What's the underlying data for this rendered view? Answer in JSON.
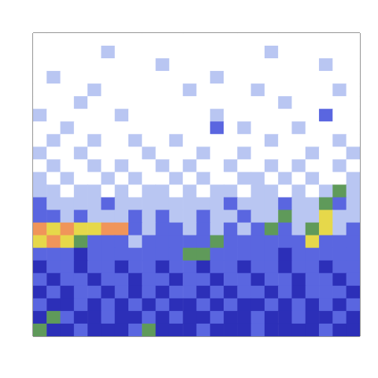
{
  "chart_data": {
    "type": "heatmap",
    "tick_labels": false,
    "cells": [
      [
        0,
        0,
        0,
        0,
        0,
        0,
        0,
        0,
        0,
        0,
        0,
        0,
        0,
        0,
        0,
        0,
        0,
        0,
        0,
        0,
        0,
        0,
        0,
        0
      ],
      [
        0,
        0,
        0,
        0,
        0,
        1,
        0,
        0,
        0,
        0,
        0,
        0,
        0,
        0,
        0,
        0,
        0,
        1,
        0,
        0,
        0,
        0,
        0,
        0
      ],
      [
        0,
        0,
        0,
        0,
        0,
        0,
        0,
        0,
        0,
        1,
        0,
        0,
        0,
        0,
        0,
        0,
        0,
        0,
        0,
        0,
        0,
        1,
        0,
        0
      ],
      [
        0,
        1,
        0,
        0,
        0,
        0,
        0,
        0,
        0,
        0,
        0,
        0,
        0,
        1,
        0,
        0,
        0,
        0,
        0,
        0,
        0,
        0,
        0,
        0
      ],
      [
        0,
        0,
        0,
        0,
        1,
        0,
        0,
        0,
        0,
        0,
        0,
        1,
        0,
        0,
        0,
        0,
        1,
        0,
        0,
        0,
        0,
        0,
        1,
        0
      ],
      [
        0,
        0,
        0,
        1,
        0,
        0,
        0,
        0,
        0,
        0,
        0,
        0,
        0,
        0,
        0,
        0,
        0,
        0,
        1,
        0,
        0,
        0,
        0,
        0
      ],
      [
        1,
        0,
        0,
        0,
        0,
        0,
        1,
        0,
        0,
        0,
        0,
        0,
        0,
        1,
        0,
        0,
        0,
        0,
        0,
        0,
        0,
        2,
        0,
        0
      ],
      [
        0,
        0,
        1,
        0,
        0,
        0,
        0,
        0,
        0,
        0,
        0,
        0,
        0,
        2,
        0,
        1,
        0,
        0,
        0,
        1,
        0,
        0,
        0,
        0
      ],
      [
        0,
        1,
        0,
        0,
        1,
        0,
        0,
        1,
        0,
        0,
        1,
        0,
        0,
        0,
        0,
        0,
        0,
        1,
        0,
        0,
        0,
        0,
        1,
        0
      ],
      [
        1,
        0,
        0,
        1,
        0,
        0,
        0,
        0,
        1,
        0,
        0,
        0,
        1,
        0,
        0,
        1,
        0,
        0,
        0,
        0,
        1,
        0,
        0,
        1
      ],
      [
        0,
        1,
        0,
        0,
        1,
        0,
        1,
        0,
        0,
        1,
        0,
        1,
        0,
        0,
        1,
        0,
        0,
        1,
        0,
        1,
        0,
        0,
        1,
        0
      ],
      [
        1,
        0,
        1,
        0,
        0,
        1,
        0,
        1,
        0,
        0,
        1,
        0,
        1,
        0,
        0,
        1,
        1,
        0,
        1,
        0,
        1,
        0,
        0,
        1
      ],
      [
        1,
        1,
        0,
        1,
        1,
        0,
        1,
        0,
        1,
        1,
        0,
        1,
        0,
        1,
        1,
        0,
        1,
        1,
        0,
        1,
        0,
        1,
        4,
        1
      ],
      [
        2,
        1,
        1,
        1,
        1,
        2,
        1,
        1,
        1,
        1,
        1,
        1,
        1,
        1,
        2,
        1,
        1,
        1,
        2,
        1,
        1,
        4,
        2,
        1
      ],
      [
        2,
        2,
        1,
        2,
        1,
        1,
        1,
        2,
        1,
        2,
        1,
        1,
        2,
        1,
        1,
        2,
        1,
        1,
        4,
        1,
        1,
        5,
        1,
        1
      ],
      [
        6,
        5,
        6,
        5,
        5,
        6,
        6,
        2,
        1,
        2,
        2,
        1,
        2,
        1,
        2,
        1,
        2,
        4,
        2,
        1,
        4,
        5,
        1,
        2
      ],
      [
        5,
        6,
        5,
        4,
        2,
        2,
        2,
        1,
        2,
        2,
        2,
        2,
        2,
        4,
        2,
        2,
        2,
        2,
        2,
        2,
        5,
        2,
        2,
        2
      ],
      [
        2,
        2,
        2,
        3,
        2,
        2,
        2,
        2,
        2,
        2,
        2,
        4,
        4,
        2,
        2,
        2,
        2,
        2,
        3,
        2,
        2,
        2,
        2,
        2
      ],
      [
        3,
        2,
        2,
        3,
        2,
        2,
        3,
        2,
        2,
        3,
        2,
        2,
        3,
        2,
        2,
        3,
        2,
        2,
        3,
        2,
        2,
        3,
        2,
        2
      ],
      [
        2,
        3,
        2,
        2,
        3,
        2,
        2,
        3,
        2,
        2,
        3,
        2,
        2,
        3,
        2,
        2,
        3,
        2,
        2,
        3,
        2,
        2,
        3,
        2
      ],
      [
        3,
        2,
        3,
        2,
        2,
        3,
        2,
        3,
        2,
        3,
        2,
        2,
        3,
        2,
        3,
        2,
        2,
        3,
        2,
        3,
        2,
        2,
        2,
        3
      ],
      [
        2,
        3,
        3,
        2,
        3,
        2,
        3,
        2,
        3,
        2,
        3,
        3,
        2,
        3,
        2,
        3,
        3,
        2,
        3,
        2,
        3,
        2,
        3,
        2
      ],
      [
        3,
        4,
        2,
        3,
        3,
        2,
        3,
        3,
        2,
        3,
        2,
        3,
        3,
        2,
        3,
        3,
        2,
        3,
        3,
        2,
        3,
        3,
        2,
        3
      ],
      [
        4,
        3,
        3,
        2,
        3,
        3,
        3,
        2,
        4,
        3,
        3,
        3,
        2,
        3,
        3,
        3,
        2,
        3,
        3,
        3,
        3,
        2,
        3,
        3
      ]
    ]
  }
}
